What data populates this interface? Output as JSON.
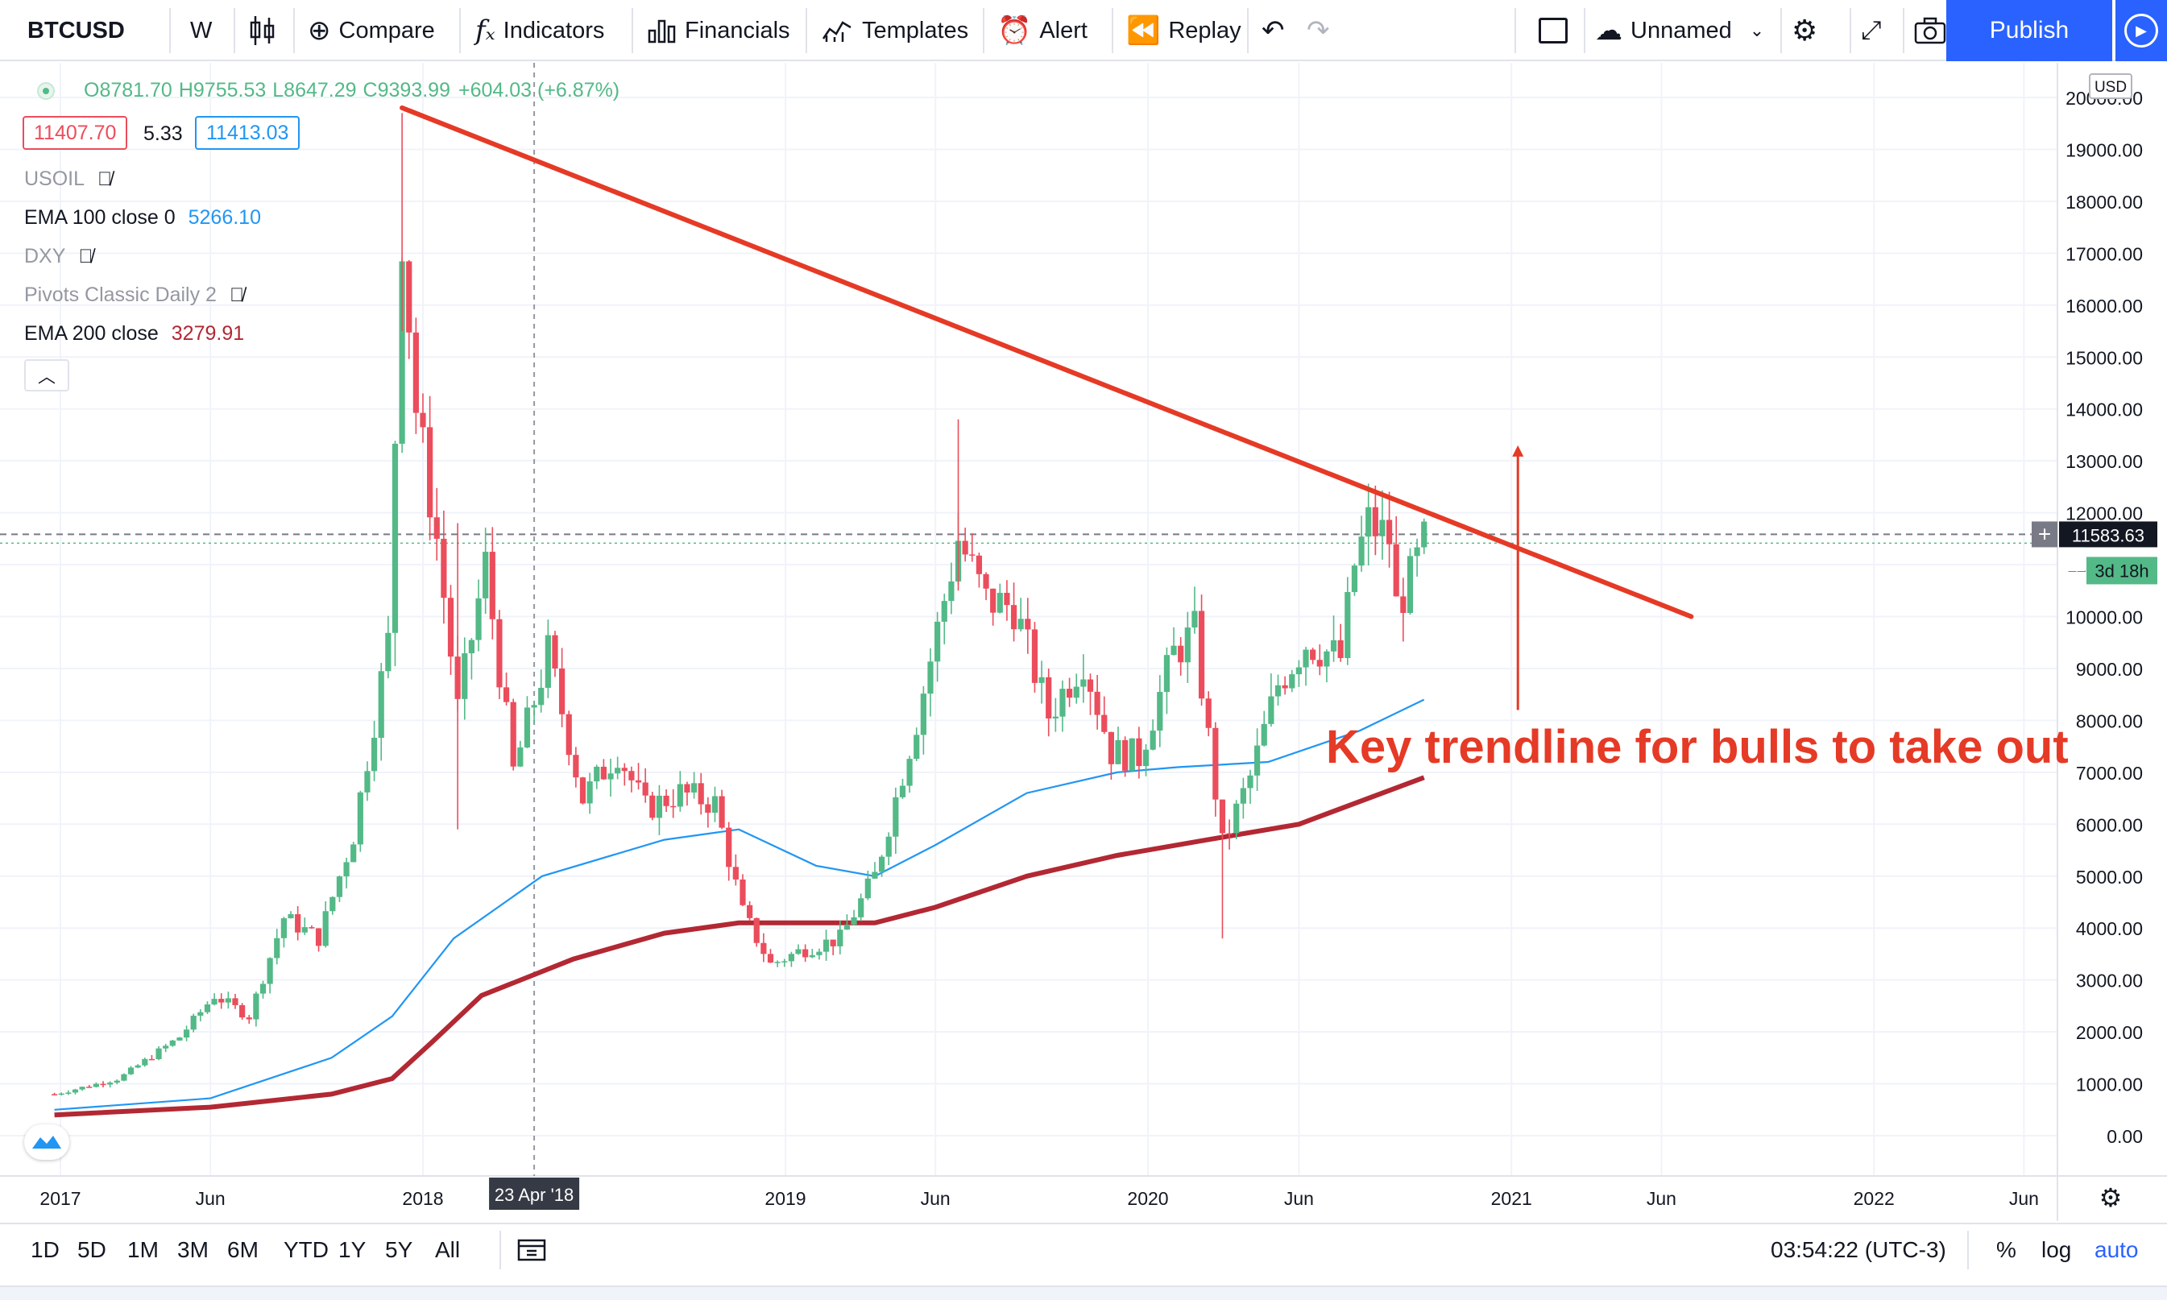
{
  "toolbar": {
    "symbol": "BTCUSD",
    "interval": "W",
    "compare_label": "Compare",
    "indicators_label": "Indicators",
    "financials_label": "Financials",
    "templates_label": "Templates",
    "alert_label": "Alert",
    "replay_label": "Replay",
    "layout_name": "Unnamed",
    "publish_label": "Publish"
  },
  "legend": {
    "open": "O8781.70",
    "high": "H9755.53",
    "low": "L8647.29",
    "close": "C9393.99",
    "change": "+604.03 (+6.87%)",
    "bid": "11407.70",
    "spread": "5.33",
    "ask": "11413.03",
    "studies": [
      {
        "name": "USOIL",
        "value": "",
        "hidden": true
      },
      {
        "name": "EMA 100 close 0",
        "value": "5266.10",
        "hidden": false
      },
      {
        "name": "DXY",
        "value": "",
        "hidden": true
      },
      {
        "name": "Pivots Classic Daily 2",
        "value": "",
        "hidden": true
      },
      {
        "name": "EMA 200 close",
        "value": "3279.91",
        "hidden": false
      }
    ]
  },
  "price_scale": {
    "currency": "USD",
    "current_price": "11583.63",
    "countdown": "3d 18h"
  },
  "crosshair_label": "23 Apr '18",
  "annotation": "Key trendline for bulls to take out",
  "range_buttons": [
    "1D",
    "5D",
    "1M",
    "3M",
    "6M",
    "YTD",
    "1Y",
    "5Y",
    "All"
  ],
  "clock": "03:54:22 (UTC-3)",
  "scale_toggles": {
    "percent": "%",
    "log": "log",
    "auto": "auto"
  },
  "colors": {
    "up": "#53b987",
    "down": "#eb4d5c",
    "ema100": "#2196f3",
    "ema200": "#b22833",
    "trendline": "#e53a26",
    "accent": "#2962ff"
  },
  "chart_data": {
    "type": "candlestick",
    "title": "BTCUSD, W",
    "ylim": [
      0,
      20000
    ],
    "yticks": [
      0,
      1000,
      2000,
      3000,
      4000,
      5000,
      6000,
      7000,
      8000,
      9000,
      10000,
      11000,
      12000,
      13000,
      14000,
      15000,
      16000,
      17000,
      18000,
      19000,
      20000
    ],
    "xticks": [
      "2017",
      "Jun",
      "2018",
      "2019",
      "Jun",
      "2020",
      "Jun",
      "2021",
      "Jun",
      "2022",
      "Jun"
    ],
    "xtick_dates": [
      "2017-01-01",
      "2017-06-01",
      "2018-01-01",
      "2019-01-01",
      "2019-06-01",
      "2020-01-01",
      "2020-06-01",
      "2021-01-01",
      "2021-06-01",
      "2022-01-01",
      "2022-06-01"
    ],
    "close_path": [
      [
        "2016-12-26",
        800
      ],
      [
        "2017-03-01",
        1100
      ],
      [
        "2017-05-01",
        1900
      ],
      [
        "2017-06-05",
        2700
      ],
      [
        "2017-07-10",
        2300
      ],
      [
        "2017-08-14",
        4200
      ],
      [
        "2017-09-18",
        3800
      ],
      [
        "2017-10-23",
        5800
      ],
      [
        "2017-11-27",
        9500
      ],
      [
        "2017-12-11",
        17500
      ],
      [
        "2017-12-25",
        14000
      ],
      [
        "2018-01-15",
        11500
      ],
      [
        "2018-02-05",
        8200
      ],
      [
        "2018-03-05",
        11000
      ],
      [
        "2018-04-02",
        7000
      ],
      [
        "2018-05-07",
        9300
      ],
      [
        "2018-06-11",
        6500
      ],
      [
        "2018-07-16",
        7400
      ],
      [
        "2018-08-13",
        6300
      ],
      [
        "2018-09-17",
        6600
      ],
      [
        "2018-10-22",
        6400
      ],
      [
        "2018-11-19",
        4300
      ],
      [
        "2018-12-17",
        3300
      ],
      [
        "2019-01-21",
        3600
      ],
      [
        "2019-02-25",
        3800
      ],
      [
        "2019-04-01",
        5000
      ],
      [
        "2019-05-13",
        8000
      ],
      [
        "2019-06-24",
        11500
      ],
      [
        "2019-07-22",
        10300
      ],
      [
        "2019-08-19",
        10200
      ],
      [
        "2019-09-23",
        8100
      ],
      [
        "2019-10-28",
        9200
      ],
      [
        "2019-11-25",
        7400
      ],
      [
        "2019-12-23",
        7300
      ],
      [
        "2020-01-27",
        9300
      ],
      [
        "2020-02-17",
        9700
      ],
      [
        "2020-03-16",
        5600
      ],
      [
        "2020-04-13",
        6900
      ],
      [
        "2020-05-11",
        8700
      ],
      [
        "2020-06-08",
        9500
      ],
      [
        "2020-07-13",
        9200
      ],
      [
        "2020-07-27",
        11000
      ],
      [
        "2020-08-10",
        11800
      ],
      [
        "2020-08-31",
        11500
      ],
      [
        "2020-09-07",
        10200
      ],
      [
        "2020-09-21",
        10700
      ],
      [
        "2020-10-05",
        11400
      ]
    ],
    "wicks": [
      {
        "date": "2017-12-11",
        "high": 19700,
        "low": 15500
      },
      {
        "date": "2018-02-05",
        "high": 11800,
        "low": 5900
      },
      {
        "date": "2019-06-24",
        "high": 13800,
        "low": 10500
      },
      {
        "date": "2020-03-16",
        "high": 6000,
        "low": 3800
      },
      {
        "date": "2020-08-17",
        "high": 12400,
        "low": 11200
      }
    ],
    "series": [
      {
        "name": "EMA 100 close 0",
        "points": [
          [
            "2016-12-26",
            500
          ],
          [
            "2017-06-01",
            720
          ],
          [
            "2017-10-01",
            1500
          ],
          [
            "2017-12-01",
            2300
          ],
          [
            "2018-02-01",
            3800
          ],
          [
            "2018-05-01",
            5000
          ],
          [
            "2018-09-01",
            5700
          ],
          [
            "2018-11-15",
            5900
          ],
          [
            "2019-02-01",
            5200
          ],
          [
            "2019-04-01",
            5000
          ],
          [
            "2019-06-01",
            5600
          ],
          [
            "2019-09-01",
            6600
          ],
          [
            "2019-12-01",
            7000
          ],
          [
            "2020-02-01",
            7100
          ],
          [
            "2020-05-01",
            7200
          ],
          [
            "2020-08-01",
            7800
          ],
          [
            "2020-10-05",
            8400
          ]
        ]
      },
      {
        "name": "EMA 200 close",
        "points": [
          [
            "2016-12-26",
            400
          ],
          [
            "2017-06-01",
            550
          ],
          [
            "2017-10-01",
            800
          ],
          [
            "2017-12-01",
            1100
          ],
          [
            "2018-01-10",
            1800
          ],
          [
            "2018-03-01",
            2700
          ],
          [
            "2018-06-01",
            3400
          ],
          [
            "2018-09-01",
            3900
          ],
          [
            "2018-11-15",
            4100
          ],
          [
            "2019-02-01",
            4100
          ],
          [
            "2019-04-01",
            4100
          ],
          [
            "2019-06-01",
            4400
          ],
          [
            "2019-09-01",
            5000
          ],
          [
            "2019-12-01",
            5400
          ],
          [
            "2020-03-01",
            5700
          ],
          [
            "2020-06-01",
            6000
          ],
          [
            "2020-10-05",
            6900
          ]
        ]
      }
    ],
    "trendline": {
      "start": [
        "2017-12-11",
        19800
      ],
      "end": [
        "2021-07-01",
        10000
      ]
    },
    "arrow": {
      "date": "2021-01-01",
      "from": 8200,
      "to": 13300
    },
    "current_price_line": 11583.63
  }
}
